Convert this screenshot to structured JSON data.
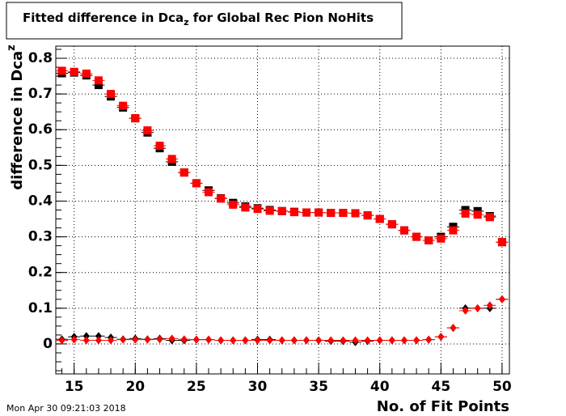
{
  "chart_data": {
    "type": "scatter",
    "title": [
      "Fitted difference in Dca",
      "z",
      " for Global Rec Pion NoHits"
    ],
    "ylabel": [
      "difference in Dca",
      "z"
    ],
    "xlabel": "No. of Fit Points",
    "date": "Mon Apr 30 09:21:03 2018",
    "grid": true,
    "xlim": [
      13.5,
      50.6
    ],
    "ylim": [
      -0.084,
      0.834
    ],
    "xticks": [
      15,
      20,
      25,
      30,
      35,
      40,
      45,
      50
    ],
    "yticks": [
      0,
      0.1,
      0.2,
      0.3,
      0.4,
      0.5,
      0.6,
      0.7,
      0.8
    ],
    "x": [
      14,
      15,
      16,
      17,
      18,
      19,
      20,
      21,
      22,
      23,
      24,
      25,
      26,
      27,
      28,
      29,
      30,
      31,
      32,
      33,
      34,
      35,
      36,
      37,
      38,
      39,
      40,
      41,
      42,
      43,
      44,
      45,
      46,
      47,
      48,
      49,
      50
    ],
    "series": [
      {
        "color": "#000000",
        "marker": "square",
        "values": [
          0.758,
          0.76,
          0.752,
          0.725,
          0.693,
          0.662,
          0.632,
          0.592,
          0.548,
          0.51,
          0.48,
          0.45,
          0.43,
          0.408,
          0.395,
          0.385,
          0.38,
          0.375,
          0.372,
          0.37,
          0.368,
          0.368,
          0.367,
          0.367,
          0.366,
          0.36,
          0.35,
          0.335,
          0.318,
          0.3,
          0.29,
          0.3,
          0.328,
          0.375,
          0.372,
          0.358,
          0.285
        ]
      },
      {
        "color": "#ff0000",
        "marker": "square",
        "values": [
          0.765,
          0.762,
          0.757,
          0.738,
          0.7,
          0.667,
          0.632,
          0.598,
          0.555,
          0.518,
          0.48,
          0.45,
          0.425,
          0.407,
          0.39,
          0.382,
          0.378,
          0.373,
          0.372,
          0.369,
          0.368,
          0.368,
          0.367,
          0.367,
          0.366,
          0.36,
          0.35,
          0.335,
          0.318,
          0.3,
          0.29,
          0.295,
          0.318,
          0.365,
          0.362,
          0.355,
          0.285
        ]
      },
      {
        "color": "#000000",
        "marker": "diamond",
        "values": [
          0.013,
          0.02,
          0.022,
          0.022,
          0.018,
          0.013,
          0.015,
          0.013,
          0.015,
          0.01,
          0.01,
          0.012,
          0.012,
          0.01,
          0.01,
          0.01,
          0.012,
          0.012,
          0.01,
          0.01,
          0.01,
          0.01,
          0.008,
          0.008,
          0.005,
          0.008,
          0.01,
          0.01,
          0.01,
          0.01,
          0.012,
          0.02,
          0.045,
          0.1,
          0.1,
          0.1,
          0.125
        ]
      },
      {
        "color": "#ff0000",
        "marker": "diamond",
        "values": [
          0.01,
          0.012,
          0.01,
          0.01,
          0.01,
          0.012,
          0.012,
          0.012,
          0.013,
          0.015,
          0.013,
          0.012,
          0.012,
          0.01,
          0.01,
          0.01,
          0.01,
          0.01,
          0.01,
          0.01,
          0.01,
          0.01,
          0.01,
          0.01,
          0.01,
          0.01,
          0.01,
          0.01,
          0.01,
          0.01,
          0.012,
          0.02,
          0.045,
          0.093,
          0.1,
          0.108,
          0.125
        ]
      }
    ]
  }
}
